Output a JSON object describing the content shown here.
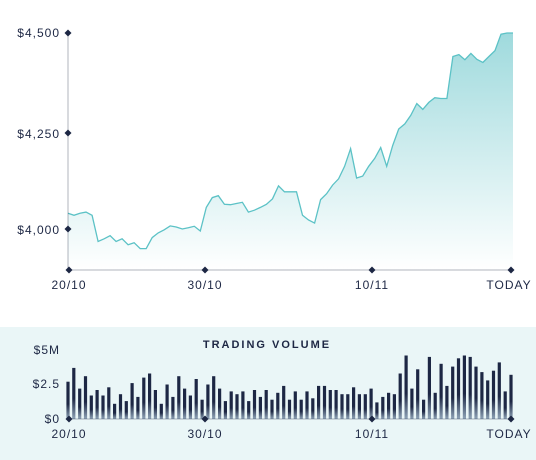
{
  "price_chart": {
    "y_ticks": [
      "$4,500",
      "$4,250",
      "$4,000"
    ],
    "x_ticks": [
      "20/10",
      "30/10",
      "10/11",
      "TODAY"
    ]
  },
  "volume_chart": {
    "title": "TRADING VOLUME",
    "y_ticks": [
      "$5M",
      "$2.5",
      "$0"
    ],
    "x_ticks": [
      "20/10",
      "30/10",
      "10/11",
      "TODAY"
    ]
  },
  "colors": {
    "line": "#5cc2c6",
    "fill_top": "#9fdadd",
    "fill_bottom": "#ffffff",
    "text": "#1d2744",
    "bar_dark": "#1d2744",
    "volume_bg": "#eaf6f7"
  },
  "chart_data": [
    {
      "type": "area",
      "x_ticks": [
        "20/10",
        "30/10",
        "10/11",
        "TODAY"
      ],
      "ylim": [
        3900,
        4500
      ],
      "y_ticks": [
        4000,
        4250,
        4500
      ],
      "y_tick_labels": [
        "$4,000",
        "$4,250",
        "$4,500"
      ],
      "grid": false,
      "x": [
        0,
        1,
        2,
        3,
        4,
        5,
        6,
        7,
        8,
        9,
        10,
        11,
        12,
        13,
        14,
        15,
        16,
        17,
        18,
        19,
        20,
        21,
        22,
        23,
        24,
        25,
        26,
        27,
        28,
        29,
        30,
        31,
        32,
        33,
        34,
        35,
        36,
        37,
        38,
        39,
        40,
        41,
        42,
        43,
        44,
        45,
        46,
        47,
        48,
        49,
        50,
        51,
        52,
        53,
        54,
        55,
        56,
        57,
        58,
        59,
        60,
        61,
        62,
        63,
        64,
        65,
        66,
        67,
        68,
        69,
        70,
        71,
        72,
        73,
        74
      ],
      "values": [
        4040,
        4035,
        4040,
        4043,
        4035,
        3968,
        3975,
        3983,
        3968,
        3975,
        3960,
        3965,
        3950,
        3950,
        3978,
        3990,
        3998,
        4008,
        4005,
        4000,
        4003,
        4007,
        3995,
        4055,
        4080,
        4085,
        4063,
        4062,
        4065,
        4068,
        4043,
        4048,
        4055,
        4063,
        4077,
        4110,
        4095,
        4095,
        4095,
        4035,
        4023,
        4015,
        4075,
        4090,
        4112,
        4128,
        4160,
        4205,
        4130,
        4135,
        4160,
        4180,
        4208,
        4160,
        4213,
        4255,
        4268,
        4290,
        4320,
        4305,
        4323,
        4335,
        4333,
        4333,
        4440,
        4445,
        4432,
        4448,
        4433,
        4425,
        4440,
        4455,
        4497,
        4500,
        4500
      ]
    },
    {
      "type": "bar",
      "title": "TRADING VOLUME",
      "x_ticks": [
        "20/10",
        "30/10",
        "10/11",
        "TODAY"
      ],
      "y_ticks": [
        "$0",
        "$2.5",
        "$5M"
      ],
      "ylim": [
        0,
        5
      ],
      "values": [
        2.7,
        3.7,
        2.2,
        3.1,
        1.7,
        2.1,
        1.7,
        2.3,
        1.1,
        1.8,
        1.3,
        2.6,
        1.6,
        3.0,
        3.3,
        2.1,
        1.1,
        2.5,
        1.6,
        3.1,
        2.2,
        1.7,
        2.9,
        1.4,
        2.5,
        3.1,
        2.2,
        1.3,
        2.0,
        1.8,
        2.0,
        1.3,
        2.1,
        1.6,
        2.1,
        1.4,
        1.9,
        2.4,
        1.4,
        2.0,
        1.4,
        2.0,
        1.5,
        2.4,
        2.4,
        2.1,
        2.1,
        1.8,
        1.8,
        2.3,
        1.8,
        1.8,
        2.2,
        1.2,
        1.6,
        1.9,
        1.8,
        3.3,
        4.6,
        2.2,
        3.6,
        1.4,
        4.5,
        1.9,
        4.0,
        2.4,
        3.8,
        4.4,
        4.6,
        4.5,
        3.8,
        3.4,
        2.8,
        3.5,
        4.1,
        2.0,
        3.2
      ]
    }
  ]
}
